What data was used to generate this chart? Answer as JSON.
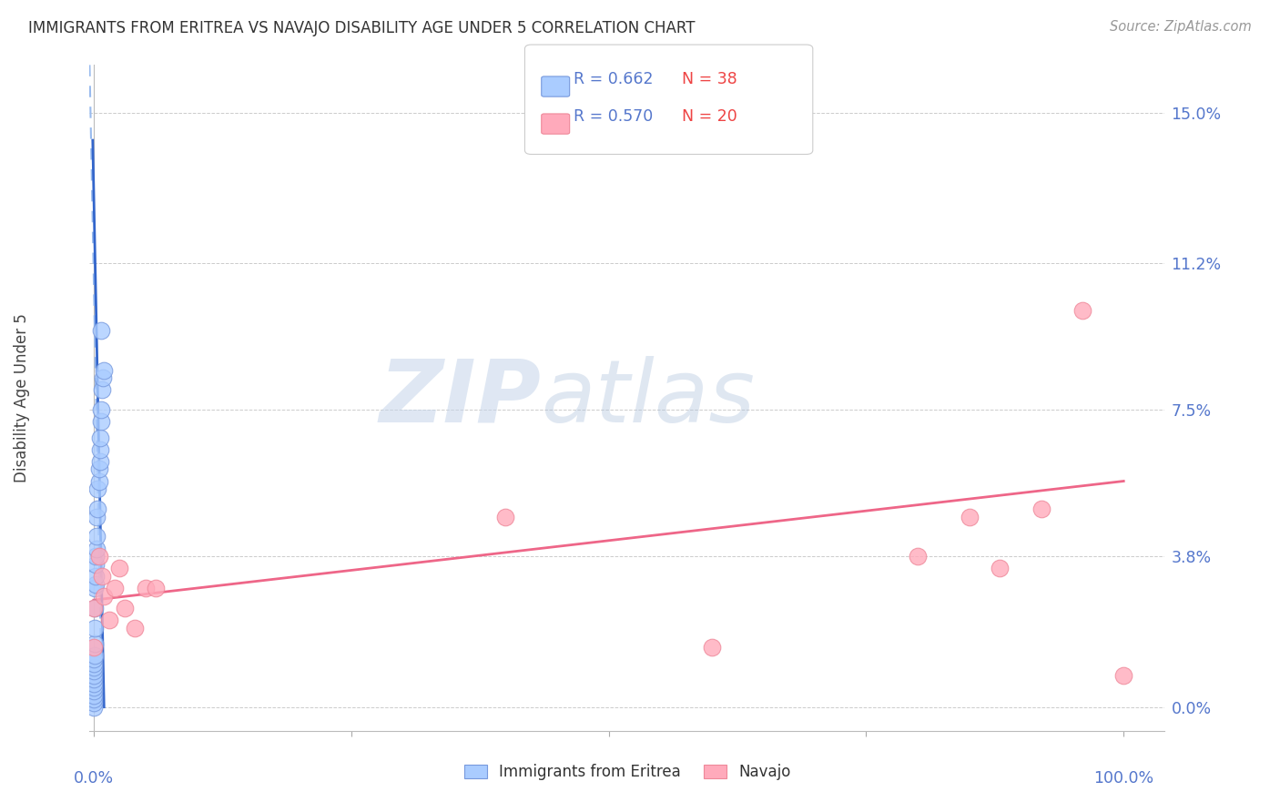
{
  "title": "IMMIGRANTS FROM ERITREA VS NAVAJO DISABILITY AGE UNDER 5 CORRELATION CHART",
  "source": "Source: ZipAtlas.com",
  "ylabel": "Disability Age Under 5",
  "watermark_zip": "ZIP",
  "watermark_atlas": "atlas",
  "legend_blue_R": "0.662",
  "legend_blue_N": "38",
  "legend_pink_R": "0.570",
  "legend_pink_N": "20",
  "legend_blue_label": "Immigrants from Eritrea",
  "legend_pink_label": "Navajo",
  "ytick_vals": [
    0.0,
    0.038,
    0.075,
    0.112,
    0.15
  ],
  "ytick_labels": [
    "0.0%",
    "3.8%",
    "7.5%",
    "11.2%",
    "15.0%"
  ],
  "xlim": [
    -0.004,
    1.04
  ],
  "ylim": [
    -0.006,
    0.162
  ],
  "blue_scatter_x": [
    0.0075,
    0.0,
    0.0,
    0.0,
    0.0,
    0.0,
    0.0,
    0.0,
    0.0,
    0.0,
    0.0,
    0.0,
    0.0,
    0.0,
    0.001,
    0.001,
    0.001,
    0.001,
    0.001,
    0.002,
    0.002,
    0.002,
    0.002,
    0.003,
    0.003,
    0.003,
    0.004,
    0.004,
    0.005,
    0.005,
    0.006,
    0.006,
    0.006,
    0.007,
    0.007,
    0.008,
    0.009,
    0.01
  ],
  "blue_scatter_y": [
    0.095,
    0.0,
    0.001,
    0.002,
    0.003,
    0.004,
    0.005,
    0.006,
    0.007,
    0.008,
    0.009,
    0.01,
    0.011,
    0.012,
    0.013,
    0.016,
    0.02,
    0.025,
    0.03,
    0.031,
    0.033,
    0.036,
    0.038,
    0.04,
    0.043,
    0.048,
    0.05,
    0.055,
    0.057,
    0.06,
    0.062,
    0.065,
    0.068,
    0.072,
    0.075,
    0.08,
    0.083,
    0.085
  ],
  "pink_scatter_x": [
    0.0,
    0.0,
    0.005,
    0.008,
    0.01,
    0.015,
    0.02,
    0.025,
    0.03,
    0.04,
    0.05,
    0.06,
    0.4,
    0.6,
    0.8,
    0.85,
    0.88,
    0.92,
    0.96,
    1.0
  ],
  "pink_scatter_y": [
    0.015,
    0.025,
    0.038,
    0.033,
    0.028,
    0.022,
    0.03,
    0.035,
    0.025,
    0.02,
    0.03,
    0.03,
    0.048,
    0.015,
    0.038,
    0.048,
    0.035,
    0.05,
    0.1,
    0.008
  ],
  "blue_solid_line_x": [
    -0.001,
    0.01
  ],
  "blue_solid_line_y": [
    0.143,
    0.0
  ],
  "blue_dash_line_x": [
    -0.004,
    0.008
  ],
  "blue_dash_line_y": [
    0.162,
    0.0
  ],
  "pink_line_x": [
    0.0,
    1.0
  ],
  "pink_line_y": [
    0.027,
    0.057
  ],
  "blue_solid_color": "#3366cc",
  "blue_dash_color": "#99bbee",
  "pink_line_color": "#ee6688",
  "scatter_blue_fill": "#aaccff",
  "scatter_blue_edge": "#7799dd",
  "scatter_pink_fill": "#ffaabb",
  "scatter_pink_edge": "#ee8899",
  "bg_color": "#ffffff",
  "grid_color": "#cccccc",
  "title_color": "#333333",
  "axis_tick_color": "#5577cc",
  "source_color": "#999999",
  "watermark_color": "#d0ddf0"
}
